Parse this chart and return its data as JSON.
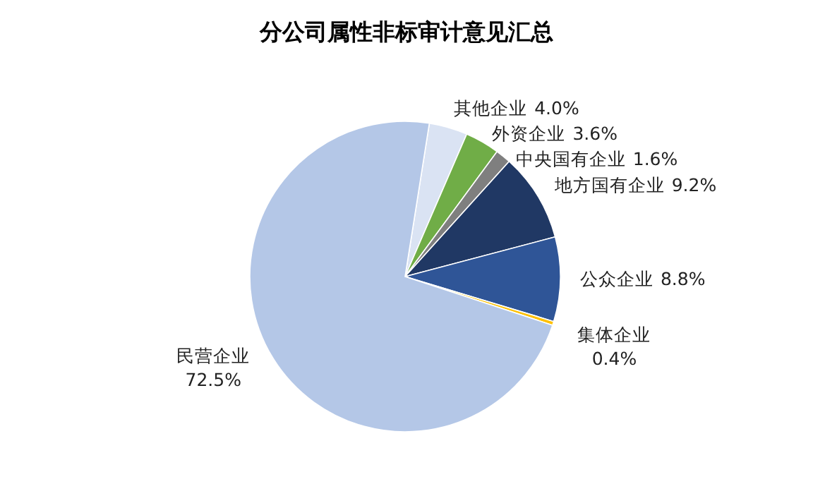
{
  "chart_data": {
    "type": "pie",
    "title": "分公司属性非标审计意见汇总",
    "categories": [
      "其他企业",
      "外资企业",
      "中央国有企业",
      "地方国有企业",
      "公众企业",
      "集体企业",
      "民营企业"
    ],
    "values": [
      4.0,
      3.6,
      1.6,
      9.2,
      8.8,
      0.4,
      72.5
    ],
    "colors": [
      "#dae3f3",
      "#70ad47",
      "#7f7f7f",
      "#203864",
      "#2f5597",
      "#ffc000",
      "#b4c7e7"
    ],
    "value_labels": [
      "4.0%",
      "3.6%",
      "1.6%",
      "9.2%",
      "8.8%",
      "0.4%",
      "72.5%"
    ]
  }
}
